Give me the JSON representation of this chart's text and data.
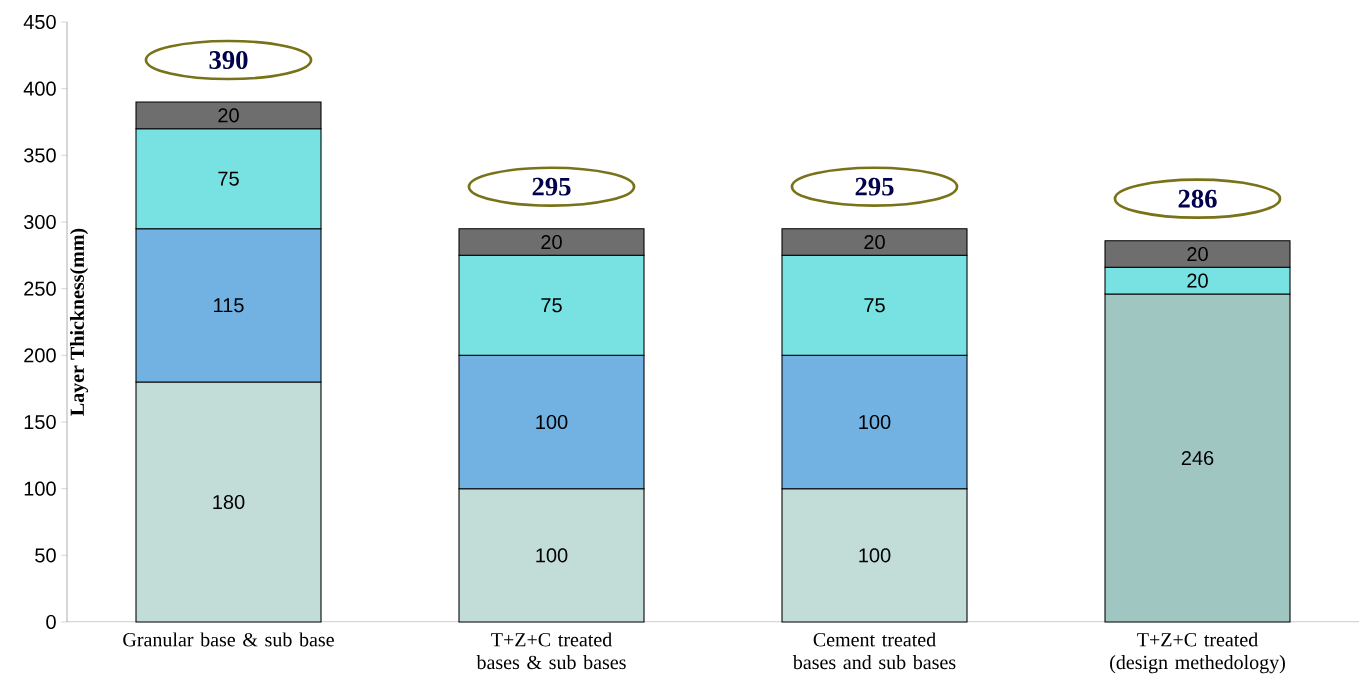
{
  "chart_data": {
    "type": "bar",
    "stacked": true,
    "ylabel": "Layer Thickness(mm)",
    "categories": [
      "Granular base & sub base",
      "T+Z+C treated bases & sub bases",
      "Cement treated bases and sub bases",
      "T+Z+C treated (design methedology)"
    ],
    "series": [
      {
        "colors": [
          "#c2dcd8",
          "#c2dcd8",
          "#c2dcd8",
          "#a0c6c2"
        ],
        "values": [
          180,
          100,
          100,
          246
        ]
      },
      {
        "color": "#72b2e2",
        "values": [
          115,
          100,
          100,
          null
        ]
      },
      {
        "color": "#78e2e2",
        "values": [
          75,
          75,
          75,
          20
        ]
      },
      {
        "color": "#6e6e6e",
        "values": [
          20,
          20,
          20,
          20
        ]
      }
    ],
    "ylim": [
      0,
      450
    ],
    "yticks": [
      0,
      50,
      100,
      150,
      200,
      250,
      300,
      350,
      400,
      450
    ],
    "data_labels": true,
    "totals": [
      "390",
      "295",
      "295",
      "286"
    ],
    "grid": false
  }
}
